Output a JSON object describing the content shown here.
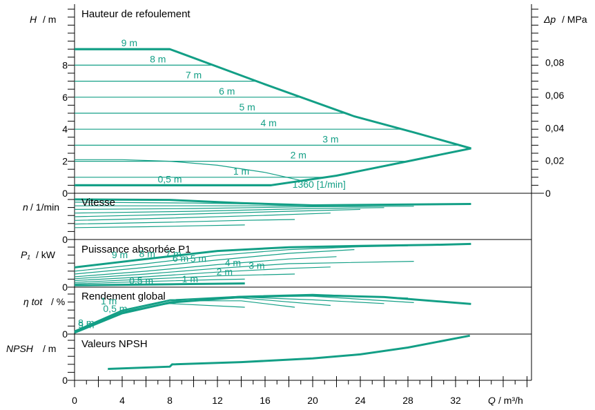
{
  "colors": {
    "curve": "#139f86",
    "axis": "#000000",
    "background": "#ffffff"
  },
  "chart_data": {
    "type": "line",
    "x_axis": {
      "label_var": "Q",
      "label_unit": "/ m³/h",
      "ticks": [
        "0",
        "4",
        "8",
        "12",
        "16",
        "20",
        "24",
        "28",
        "32"
      ],
      "range": [
        0,
        38
      ]
    },
    "panels": [
      {
        "id": "head",
        "title": "Hauteur de refoulement",
        "ylabel_var": "H",
        "ylabel_unit": "/ m",
        "y_ticks": [
          "0",
          "2",
          "4",
          "6",
          "8"
        ],
        "ylim": [
          0,
          10.8
        ],
        "right_axis": {
          "label_var": "Δp",
          "label_unit": "/ MPa",
          "ticks": [
            "0",
            "0,02",
            "0,04",
            "0,06",
            "0,08"
          ]
        },
        "envelope": [
          [
            0,
            0.5
          ],
          [
            16.5,
            0.5
          ],
          [
            22,
            1.1
          ],
          [
            28,
            2.0
          ],
          [
            33.3,
            2.8
          ],
          [
            28.5,
            3.8
          ],
          [
            23.5,
            4.8
          ],
          [
            16,
            6.8
          ],
          [
            8,
            9.0
          ],
          [
            0,
            9.0
          ]
        ],
        "levels": [
          {
            "label": "9 m",
            "h": 9,
            "label_q": 4.6
          },
          {
            "label": "8 m",
            "h": 8,
            "label_q": 7.0
          },
          {
            "label": "7 m",
            "h": 7,
            "label_q": 10.0
          },
          {
            "label": "6 m",
            "h": 6,
            "label_q": 12.8
          },
          {
            "label": "5 m",
            "h": 5,
            "label_q": 14.5
          },
          {
            "label": "4 m",
            "h": 4,
            "label_q": 16.3
          },
          {
            "label": "3 m",
            "h": 3,
            "label_q": 21.5
          },
          {
            "label": "2 m",
            "h": 2,
            "label_q": 18.8
          },
          {
            "label": "1 m",
            "h": 1,
            "label_q": 14.0
          },
          {
            "label": "0,5 m",
            "h": 0.5,
            "label_q": 8.0
          }
        ],
        "speed_curve": {
          "label": "1360 [1/min]",
          "points": [
            [
              0,
              2.1
            ],
            [
              4,
              2.1
            ],
            [
              8,
              2.0
            ],
            [
              12,
              1.75
            ],
            [
              16,
              1.3
            ],
            [
              19,
              0.8
            ]
          ],
          "label_q": 18.3,
          "label_h": 0.55
        }
      },
      {
        "id": "speed",
        "title": "Vitesse",
        "ylabel_var": "n",
        "ylabel_unit": "/ 1/min",
        "y_ticks": [
          "0"
        ],
        "ylim": [
          0,
          1
        ]
      },
      {
        "id": "power",
        "title": "Puissance absorbée P1",
        "ylabel_var": "P₁",
        "ylabel_unit": "/ kW",
        "y_ticks": [
          "0"
        ],
        "ylim": [
          0,
          1
        ],
        "labels": [
          {
            "label": "9 m",
            "q": 3.8,
            "v": 0.69
          },
          {
            "label": "8 m",
            "q": 6.1,
            "v": 0.71
          },
          {
            "label": "7 m",
            "q": 8.3,
            "v": 0.71
          },
          {
            "label": "6 m",
            "q": 8.9,
            "v": 0.62
          },
          {
            "label": "5 m",
            "q": 10.4,
            "v": 0.61
          },
          {
            "label": "4 m",
            "q": 13.3,
            "v": 0.52
          },
          {
            "label": "3 m",
            "q": 15.3,
            "v": 0.46
          },
          {
            "label": "2 m",
            "q": 12.6,
            "v": 0.33
          },
          {
            "label": "1 m",
            "q": 9.7,
            "v": 0.18
          },
          {
            "label": "0,5 m",
            "q": 5.6,
            "v": 0.14
          }
        ]
      },
      {
        "id": "efficiency",
        "title": "Rendement global",
        "ylabel_var": "η tot",
        "ylabel_unit": "/ %",
        "y_ticks": [
          "0"
        ],
        "ylim": [
          0,
          1
        ],
        "labels": [
          {
            "label": "0,5 m",
            "q": 2.4,
            "v": 0.55
          },
          {
            "label": "9 m",
            "q": 0.3,
            "v": 0.2
          },
          {
            "label": "1 m",
            "q": 2.2,
            "v": 0.72
          },
          {
            "label": "8 m",
            "q": 0.3,
            "v": 0.25
          }
        ]
      },
      {
        "id": "npsh",
        "title": "Valeurs NPSH",
        "ylabel_var": "NPSH",
        "ylabel_unit": "/ m",
        "y_ticks": [
          "0"
        ],
        "ylim": [
          0,
          1
        ],
        "curve": [
          [
            2.8,
            0.25
          ],
          [
            8,
            0.3
          ],
          [
            8.2,
            0.35
          ],
          [
            14,
            0.4
          ],
          [
            20,
            0.48
          ],
          [
            24,
            0.57
          ],
          [
            28,
            0.72
          ],
          [
            33.2,
            0.98
          ]
        ]
      }
    ]
  }
}
